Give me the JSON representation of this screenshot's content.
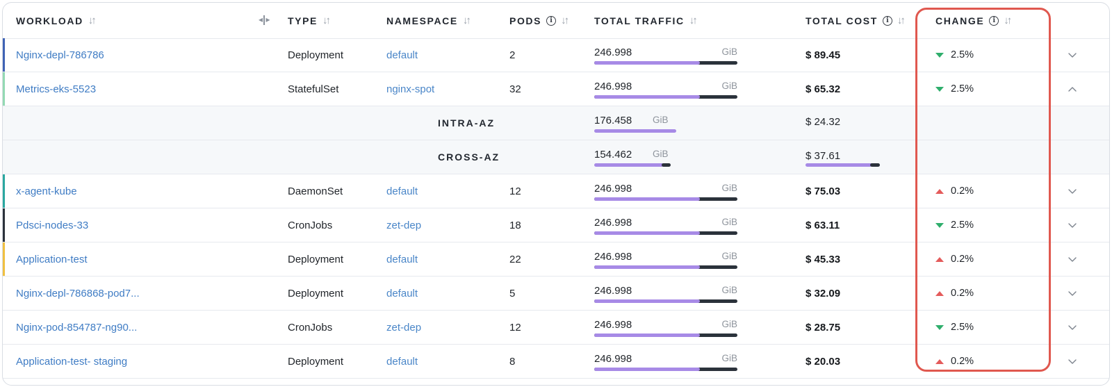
{
  "headers": {
    "workload": "WORKLOAD",
    "type": "TYPE",
    "namespace": "NAMESPACE",
    "pods": "PODS",
    "traffic": "TOTAL TRAFFIC",
    "cost": "TOTAL COST",
    "change": "CHANGE"
  },
  "colors": {
    "link": "#3f7cc4",
    "bar_fill": "#a78ae6",
    "bar_track": "#2b323b",
    "down": "#2fae6c",
    "up": "#e45b5b",
    "highlight": "#e0584f"
  },
  "rows": [
    {
      "name": "Nginx-depl-786786",
      "type": "Deployment",
      "namespace": "default",
      "pods": "2",
      "traffic": "246.998",
      "unit": "GiB",
      "traffic_fill": 0.74,
      "cost": "$ 89.45",
      "change": "2.5%",
      "direction": "down",
      "accent": "#3f63b5",
      "chevron": "chevron-down-icon"
    },
    {
      "name": "Metrics-eks-5523",
      "type": "StatefulSet",
      "namespace": "nginx-spot",
      "pods": "32",
      "traffic": "246.998",
      "unit": "GiB",
      "traffic_fill": 0.74,
      "cost": "$ 65.32",
      "change": "2.5%",
      "direction": "down",
      "accent": "#93d9b3",
      "chevron": "chevron-up-icon"
    },
    {
      "name": "x-agent-kube",
      "type": "DaemonSet",
      "namespace": "default",
      "pods": "12",
      "traffic": "246.998",
      "unit": "GiB",
      "traffic_fill": 0.74,
      "cost": "$ 75.03",
      "change": "0.2%",
      "direction": "up",
      "accent": "#2aa7a0",
      "chevron": "chevron-down-icon"
    },
    {
      "name": "Pdsci-nodes-33",
      "type": "CronJobs",
      "namespace": "zet-dep",
      "pods": "18",
      "traffic": "246.998",
      "unit": "GiB",
      "traffic_fill": 0.74,
      "cost": "$ 63.11",
      "change": "2.5%",
      "direction": "down",
      "accent": "#2b323b",
      "chevron": "chevron-down-icon"
    },
    {
      "name": "Application-test",
      "type": "Deployment",
      "namespace": "default",
      "pods": "22",
      "traffic": "246.998",
      "unit": "GiB",
      "traffic_fill": 0.74,
      "cost": "$ 45.33",
      "change": "0.2%",
      "direction": "up",
      "accent": "#f0c040",
      "chevron": "chevron-down-icon"
    },
    {
      "name": "Nginx-depl-786868-pod7...",
      "type": "Deployment",
      "namespace": "default",
      "pods": "5",
      "traffic": "246.998",
      "unit": "GiB",
      "traffic_fill": 0.74,
      "cost": "$ 32.09",
      "change": "0.2%",
      "direction": "up",
      "accent": "",
      "chevron": "chevron-down-icon"
    },
    {
      "name": "Nginx-pod-854787-ng90...",
      "type": "CronJobs",
      "namespace": "zet-dep",
      "pods": "12",
      "traffic": "246.998",
      "unit": "GiB",
      "traffic_fill": 0.74,
      "cost": "$ 28.75",
      "change": "2.5%",
      "direction": "down",
      "accent": "",
      "chevron": "chevron-down-icon"
    },
    {
      "name": "Application-test- staging",
      "type": "Deployment",
      "namespace": "default",
      "pods": "8",
      "traffic": "246.998",
      "unit": "GiB",
      "traffic_fill": 0.74,
      "cost": "$ 20.03",
      "change": "0.2%",
      "direction": "up",
      "accent": "",
      "chevron": "chevron-down-icon"
    }
  ],
  "subrows": [
    {
      "label": "INTRA-AZ",
      "traffic": "176.458",
      "unit": "GiB",
      "traffic_fill": 1.0,
      "cost": "$ 24.32",
      "cost_fill": 0,
      "cost_dark_fill": 0
    },
    {
      "label": "CROSS-AZ",
      "traffic": "154.462",
      "unit": "GiB",
      "traffic_fill": 0.85,
      "cost": "$ 37.61",
      "cost_fill": 0.9,
      "cost_dark_fill": 0.1
    }
  ]
}
